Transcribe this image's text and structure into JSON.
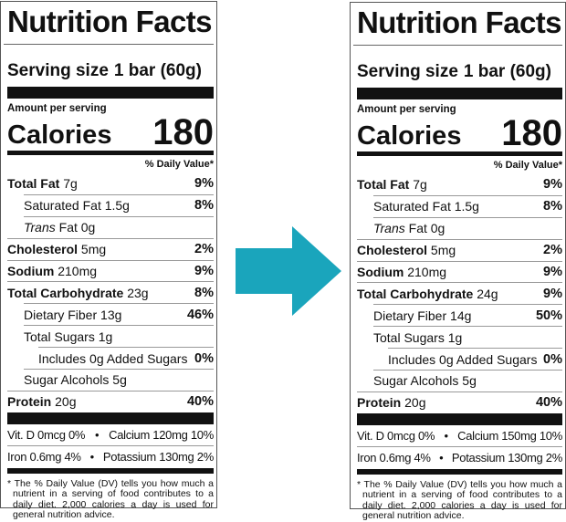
{
  "arrow": {
    "color": "#1AA5BC",
    "icon": "arrow-right-icon"
  },
  "labels": [
    {
      "title": "Nutrition Facts",
      "serving_label": "Serving size",
      "serving_value": "1 bar (60g)",
      "amount_per_serving": "Amount per serving",
      "calories_label": "Calories",
      "calories_value": "180",
      "dv_header": "% Daily Value*",
      "rows": [
        {
          "name": "Total Fat",
          "amount": "7g",
          "dv": "9%",
          "bold": true,
          "indent": 0
        },
        {
          "name": "Saturated Fat",
          "amount": "1.5g",
          "dv": "8%",
          "bold": false,
          "indent": 1
        },
        {
          "name": "Trans",
          "amount": "Fat 0g",
          "dv": "",
          "bold": false,
          "italic": true,
          "indent": 1
        },
        {
          "name": "Cholesterol",
          "amount": "5mg",
          "dv": "2%",
          "bold": true,
          "indent": 0
        },
        {
          "name": "Sodium",
          "amount": "210mg",
          "dv": "9%",
          "bold": true,
          "indent": 0
        },
        {
          "name": "Total Carbohydrate",
          "amount": "23g",
          "dv": "8%",
          "bold": true,
          "indent": 0
        },
        {
          "name": "Dietary Fiber",
          "amount": "13g",
          "dv": "46%",
          "bold": false,
          "indent": 1
        },
        {
          "name": "Total Sugars",
          "amount": "1g",
          "dv": "",
          "bold": false,
          "indent": 1
        },
        {
          "name": "Includes 0g Added Sugars",
          "amount": "",
          "dv": "0%",
          "bold": false,
          "indent": 2
        },
        {
          "name": "Sugar Alcohols",
          "amount": "5g",
          "dv": "",
          "bold": false,
          "indent": 1
        },
        {
          "name": "Protein",
          "amount": "20g",
          "dv": "40%",
          "bold": true,
          "indent": 0
        }
      ],
      "vitamins": [
        [
          "Vit. D 0mcg 0%",
          "•",
          "Calcium 120mg 10%"
        ],
        [
          "Iron 0.6mg 4%",
          "•",
          "Potassium 130mg 2%"
        ]
      ],
      "footnote": "* The % Daily Value (DV) tells you how much a nutrient in a serving of food contributes to a daily diet. 2,000 calories a day is used for general nutrition advice."
    },
    {
      "title": "Nutrition Facts",
      "serving_label": "Serving size",
      "serving_value": "1 bar (60g)",
      "amount_per_serving": "Amount per serving",
      "calories_label": "Calories",
      "calories_value": "180",
      "dv_header": "% Daily Value*",
      "rows": [
        {
          "name": "Total Fat",
          "amount": "7g",
          "dv": "9%",
          "bold": true,
          "indent": 0
        },
        {
          "name": "Saturated Fat",
          "amount": "1.5g",
          "dv": "8%",
          "bold": false,
          "indent": 1
        },
        {
          "name": "Trans",
          "amount": "Fat 0g",
          "dv": "",
          "bold": false,
          "italic": true,
          "indent": 1
        },
        {
          "name": "Cholesterol",
          "amount": "5mg",
          "dv": "2%",
          "bold": true,
          "indent": 0
        },
        {
          "name": "Sodium",
          "amount": "210mg",
          "dv": "9%",
          "bold": true,
          "indent": 0
        },
        {
          "name": "Total Carbohydrate",
          "amount": "24g",
          "dv": "9%",
          "bold": true,
          "indent": 0
        },
        {
          "name": "Dietary Fiber",
          "amount": "14g",
          "dv": "50%",
          "bold": false,
          "indent": 1
        },
        {
          "name": "Total Sugars",
          "amount": "1g",
          "dv": "",
          "bold": false,
          "indent": 1
        },
        {
          "name": "Includes 0g Added Sugars",
          "amount": "",
          "dv": "0%",
          "bold": false,
          "indent": 2
        },
        {
          "name": "Sugar Alcohols",
          "amount": "5g",
          "dv": "",
          "bold": false,
          "indent": 1
        },
        {
          "name": "Protein",
          "amount": "20g",
          "dv": "40%",
          "bold": true,
          "indent": 0
        }
      ],
      "vitamins": [
        [
          "Vit. D 0mcg 0%",
          "•",
          "Calcium 150mg 10%"
        ],
        [
          "Iron 0.6mg 4%",
          "•",
          "Potassium 130mg 2%"
        ]
      ],
      "footnote": "* The % Daily Value (DV) tells you how much a nutrient in a serving of food contributes to a daily diet. 2,000 calories a day is used for general nutrition advice."
    }
  ]
}
